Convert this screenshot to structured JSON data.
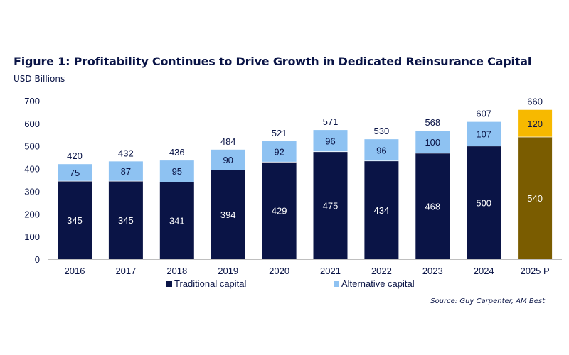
{
  "chart_data": {
    "type": "bar",
    "stacked": true,
    "title": "Figure 1: Profitability Continues to Drive Growth in Dedicated Reinsurance Capital",
    "ylabel": "USD Billions",
    "ylim": [
      0,
      700
    ],
    "yticks": [
      "0",
      "100",
      "200",
      "300",
      "400",
      "500",
      "600",
      "700"
    ],
    "grid": false,
    "categories": [
      "2016",
      "2017",
      "2018",
      "2019",
      "2020",
      "2021",
      "2022",
      "2023",
      "2024",
      "2025 P"
    ],
    "series": [
      {
        "name": "Traditional capital",
        "values": [
          345,
          345,
          341,
          394,
          429,
          475,
          434,
          468,
          500,
          540
        ],
        "color": "#0a1446",
        "projected_color": "#7a5c00"
      },
      {
        "name": "Alternative capital",
        "values": [
          75,
          87,
          95,
          90,
          92,
          96,
          96,
          100,
          107,
          120
        ],
        "color": "#8ec2f2",
        "projected_color": "#f7b900"
      }
    ],
    "totals": [
      420,
      432,
      436,
      484,
      521,
      571,
      530,
      568,
      607,
      660
    ],
    "legend_position": "bottom",
    "source": "Source: Guy Carpenter, AM Best"
  }
}
